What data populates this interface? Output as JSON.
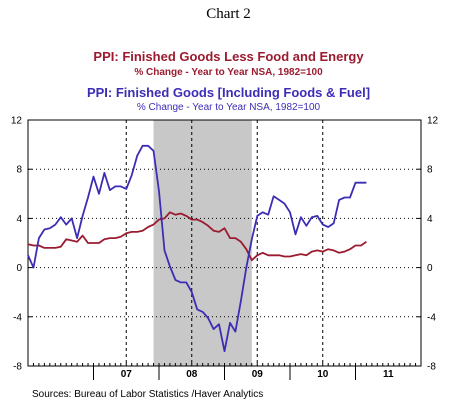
{
  "title": "Chart 2",
  "legend": {
    "series1_title": "PPI: Finished Goods Less Food and Energy",
    "series1_sub": "% Change - Year to Year    NSA, 1982=100",
    "series2_title": "PPI: Finished Goods [Including Foods & Fuel]",
    "series2_sub": "% Change - Year to Year    NSA, 1982=100"
  },
  "source": "Sources:  Bureau of Labor Statistics /Haver Analytics",
  "chart_data": {
    "type": "line",
    "ylim": [
      -8,
      12
    ],
    "yticks": [
      12,
      8,
      4,
      0,
      -4,
      -8
    ],
    "xticks": [
      "07",
      "08",
      "09",
      "10",
      "11"
    ],
    "shaded_region": [
      "2007-12",
      "2009-06"
    ],
    "dashed_verticals": [
      "2007-07",
      "2008-07",
      "2009-07",
      "2010-07"
    ],
    "x": [
      "2006-01",
      "2006-02",
      "2006-03",
      "2006-04",
      "2006-05",
      "2006-06",
      "2006-07",
      "2006-08",
      "2006-09",
      "2006-10",
      "2006-11",
      "2006-12",
      "2007-01",
      "2007-02",
      "2007-03",
      "2007-04",
      "2007-05",
      "2007-06",
      "2007-07",
      "2007-08",
      "2007-09",
      "2007-10",
      "2007-11",
      "2007-12",
      "2008-01",
      "2008-02",
      "2008-03",
      "2008-04",
      "2008-05",
      "2008-06",
      "2008-07",
      "2008-08",
      "2008-09",
      "2008-10",
      "2008-11",
      "2008-12",
      "2009-01",
      "2009-02",
      "2009-03",
      "2009-04",
      "2009-05",
      "2009-06",
      "2009-07",
      "2009-08",
      "2009-09",
      "2009-10",
      "2009-11",
      "2009-12",
      "2010-01",
      "2010-02",
      "2010-03",
      "2010-04",
      "2010-05",
      "2010-06",
      "2010-07",
      "2010-08",
      "2010-09",
      "2010-10",
      "2010-11",
      "2010-12",
      "2011-01",
      "2011-02",
      "2011-03"
    ],
    "series": [
      {
        "name": "PPI: Finished Goods Less Food and Energy",
        "color": "#9B1B30",
        "values": [
          1.9,
          1.8,
          1.8,
          1.6,
          1.6,
          1.6,
          1.7,
          2.3,
          2.2,
          2.1,
          2.6,
          2.0,
          2.0,
          2.0,
          2.3,
          2.4,
          2.4,
          2.5,
          2.8,
          2.9,
          2.9,
          3.0,
          3.3,
          3.5,
          3.9,
          4.0,
          4.5,
          4.3,
          4.4,
          4.2,
          3.9,
          3.9,
          3.7,
          3.4,
          3.0,
          2.9,
          3.2,
          2.4,
          2.4,
          2.1,
          1.5,
          0.6,
          1.0,
          1.2,
          1.0,
          1.0,
          1.0,
          0.9,
          0.9,
          1.0,
          1.1,
          1.0,
          1.3,
          1.4,
          1.3,
          1.5,
          1.4,
          1.2,
          1.3,
          1.5,
          1.8,
          1.8,
          2.1
        ]
      },
      {
        "name": "PPI: Finished Goods [Including Foods & Fuel]",
        "color": "#3C2DB5",
        "values": [
          1.0,
          0.0,
          2.4,
          3.1,
          3.2,
          3.5,
          4.1,
          3.5,
          4.0,
          2.4,
          4.2,
          5.7,
          7.4,
          6.0,
          7.7,
          6.3,
          6.6,
          6.6,
          6.4,
          7.5,
          9.1,
          9.9,
          9.9,
          9.5,
          6.2,
          1.4,
          0.1,
          -1.0,
          -1.2,
          -1.2,
          -2.0,
          -3.4,
          -3.6,
          -4.1,
          -5.0,
          -4.6,
          -6.8,
          -4.5,
          -5.2,
          -2.7,
          0.0,
          2.3,
          4.2,
          4.5,
          4.3,
          5.8,
          5.5,
          5.2,
          4.5,
          2.7,
          4.1,
          3.4,
          4.1,
          4.2,
          3.5,
          3.3,
          3.6,
          5.5,
          5.7,
          5.7,
          6.9,
          6.9,
          6.9
        ]
      }
    ]
  }
}
